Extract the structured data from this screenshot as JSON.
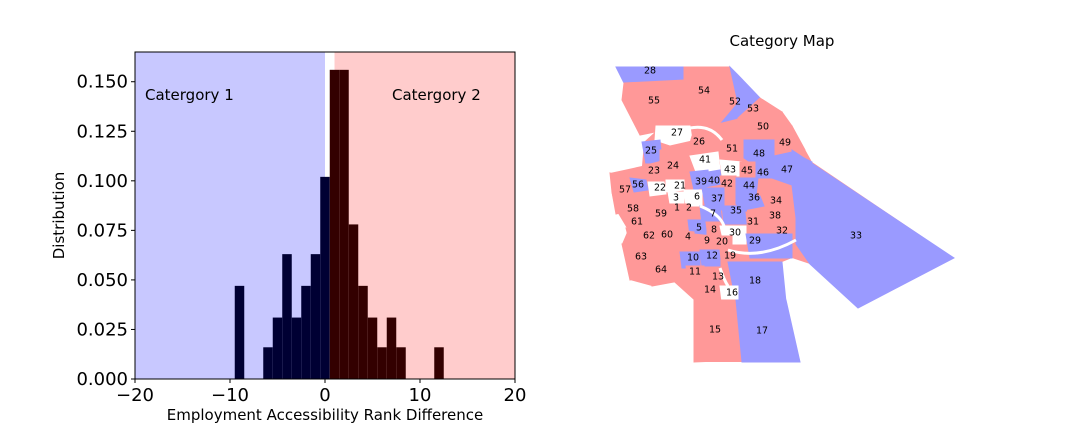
{
  "chart_data": [
    {
      "type": "bar",
      "subtype": "histogram",
      "title": "",
      "xlabel": "Employment Accessibility Rank Difference",
      "ylabel": "Distribution",
      "xlim": [
        -20,
        20
      ],
      "ylim": [
        0.0,
        0.165
      ],
      "xticks": [
        "−20",
        "−10",
        "0",
        "10",
        "20"
      ],
      "xtick_values": [
        -20,
        -10,
        0,
        10,
        20
      ],
      "yticks": [
        "0.000",
        "0.025",
        "0.050",
        "0.075",
        "0.100",
        "0.125",
        "0.150"
      ],
      "ytick_values": [
        0,
        0.025,
        0.05,
        0.075,
        0.1,
        0.125,
        0.15
      ],
      "regions": [
        {
          "label": "Catergory 1",
          "from": -20,
          "to": 0,
          "color": "#c8c8ff"
        },
        {
          "label": "Catergory 2",
          "from": 1,
          "to": 20,
          "color": "#ffcccc"
        }
      ],
      "series": [
        {
          "color": "#000033",
          "bins": [
            {
              "x0": -9.5,
              "x1": -8.5,
              "value": 0.047
            },
            {
              "x0": -6.5,
              "x1": -5.5,
              "value": 0.016
            },
            {
              "x0": -5.5,
              "x1": -4.5,
              "value": 0.031
            },
            {
              "x0": -4.5,
              "x1": -3.5,
              "value": 0.063
            },
            {
              "x0": -3.5,
              "x1": -2.5,
              "value": 0.031
            },
            {
              "x0": -2.5,
              "x1": -1.5,
              "value": 0.047
            },
            {
              "x0": -1.5,
              "x1": -0.5,
              "value": 0.063
            },
            {
              "x0": -0.5,
              "x1": 0.5,
              "value": 0.102
            }
          ]
        },
        {
          "color": "#330000",
          "bins": [
            {
              "x0": 0.5,
              "x1": 1.5,
              "value": 0.156
            },
            {
              "x0": 1.5,
              "x1": 2.5,
              "value": 0.156
            },
            {
              "x0": 2.5,
              "x1": 3.5,
              "value": 0.078
            },
            {
              "x0": 3.5,
              "x1": 4.5,
              "value": 0.047
            },
            {
              "x0": 4.5,
              "x1": 5.5,
              "value": 0.031
            },
            {
              "x0": 5.5,
              "x1": 6.5,
              "value": 0.016
            },
            {
              "x0": 6.5,
              "x1": 7.5,
              "value": 0.031
            },
            {
              "x0": 7.5,
              "x1": 8.5,
              "value": 0.016
            },
            {
              "x0": 11.5,
              "x1": 12.5,
              "value": 0.016
            }
          ]
        }
      ]
    }
  ],
  "map": {
    "title": "Category Map",
    "colors": {
      "category1": "#9a9aff",
      "category2": "#ff9898",
      "none": "#ffffff"
    },
    "regions": [
      {
        "id": "28",
        "cat": 1
      },
      {
        "id": "55",
        "cat": 2
      },
      {
        "id": "54",
        "cat": 2
      },
      {
        "id": "52",
        "cat": 1
      },
      {
        "id": "53",
        "cat": 2
      },
      {
        "id": "50",
        "cat": 2
      },
      {
        "id": "27",
        "cat": 0
      },
      {
        "id": "26",
        "cat": 2
      },
      {
        "id": "49",
        "cat": 2
      },
      {
        "id": "51",
        "cat": 2
      },
      {
        "id": "48",
        "cat": 1
      },
      {
        "id": "25",
        "cat": 1
      },
      {
        "id": "41",
        "cat": 0
      },
      {
        "id": "24",
        "cat": 2
      },
      {
        "id": "23",
        "cat": 2
      },
      {
        "id": "43",
        "cat": 0
      },
      {
        "id": "45",
        "cat": 2
      },
      {
        "id": "46",
        "cat": 1
      },
      {
        "id": "47",
        "cat": 1
      },
      {
        "id": "57",
        "cat": 2
      },
      {
        "id": "56",
        "cat": 1
      },
      {
        "id": "22",
        "cat": 0
      },
      {
        "id": "21",
        "cat": 0
      },
      {
        "id": "39",
        "cat": 1
      },
      {
        "id": "40",
        "cat": 1
      },
      {
        "id": "42",
        "cat": 2
      },
      {
        "id": "44",
        "cat": 1
      },
      {
        "id": "3",
        "cat": 0
      },
      {
        "id": "6",
        "cat": 0
      },
      {
        "id": "37",
        "cat": 1
      },
      {
        "id": "36",
        "cat": 1
      },
      {
        "id": "34",
        "cat": 2
      },
      {
        "id": "58",
        "cat": 2
      },
      {
        "id": "1",
        "cat": 2
      },
      {
        "id": "2",
        "cat": 2
      },
      {
        "id": "59",
        "cat": 2
      },
      {
        "id": "61",
        "cat": 2
      },
      {
        "id": "7",
        "cat": 1
      },
      {
        "id": "35",
        "cat": 1
      },
      {
        "id": "38",
        "cat": 2
      },
      {
        "id": "31",
        "cat": 2
      },
      {
        "id": "5",
        "cat": 1
      },
      {
        "id": "8",
        "cat": 2
      },
      {
        "id": "30",
        "cat": 0
      },
      {
        "id": "32",
        "cat": 2
      },
      {
        "id": "33",
        "cat": 1
      },
      {
        "id": "62",
        "cat": 2
      },
      {
        "id": "60",
        "cat": 2
      },
      {
        "id": "4",
        "cat": 2
      },
      {
        "id": "9",
        "cat": 2
      },
      {
        "id": "20",
        "cat": 2
      },
      {
        "id": "29",
        "cat": 1
      },
      {
        "id": "12",
        "cat": 1
      },
      {
        "id": "19",
        "cat": 2
      },
      {
        "id": "10",
        "cat": 1
      },
      {
        "id": "63",
        "cat": 2
      },
      {
        "id": "64",
        "cat": 2
      },
      {
        "id": "11",
        "cat": 2
      },
      {
        "id": "13",
        "cat": 2
      },
      {
        "id": "18",
        "cat": 1
      },
      {
        "id": "14",
        "cat": 2
      },
      {
        "id": "16",
        "cat": 0
      },
      {
        "id": "15",
        "cat": 2
      },
      {
        "id": "17",
        "cat": 1
      }
    ]
  }
}
